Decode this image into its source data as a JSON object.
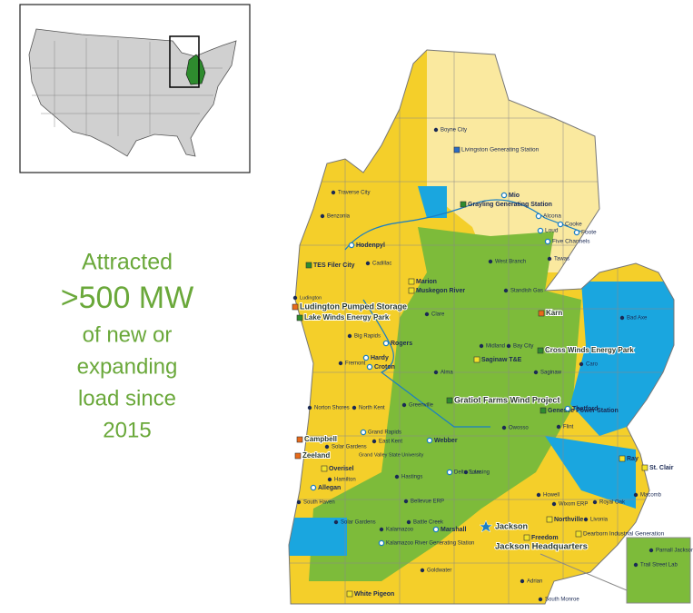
{
  "callout": {
    "lines": [
      "Attracted",
      ">500 MW",
      "of new or",
      "expanding",
      "load since",
      "2015"
    ]
  },
  "map": {
    "labels": [
      "Boyne City",
      "Livingston Generating Station",
      "Traverse City",
      "Benzonia",
      "Grayling Generating Station",
      "Mio",
      "Alcona",
      "Cooke",
      "Loud",
      "Five Channels",
      "Foote",
      "Hodenpyl",
      "TES Filer City",
      "Cadillac",
      "West Branch",
      "Tawas",
      "Ludington",
      "Ludington Pumped Storage",
      "Marion",
      "Muskegon River",
      "Standish Gas",
      "Lake Winds Energy Park",
      "Clare",
      "Big Rapids",
      "Rogers",
      "Karn",
      "Bad Axe",
      "Midland",
      "Bay City",
      "Saginaw T&E",
      "Cross Winds Energy Park",
      "Caro",
      "Hardy",
      "Croton",
      "Fremont",
      "Alma",
      "Saginaw",
      "Norton Shores",
      "North Kent",
      "Greenville",
      "Gratiot Farms Wind Project",
      "Genesee Power Station",
      "Thetford",
      "Owosso",
      "Flint",
      "Campbell",
      "Grand Rapids",
      "Solar Gardens",
      "Grand Valley State University",
      "East Kent",
      "Webber",
      "Zeeland",
      "Lansing",
      "Delta Solar",
      "Ray",
      "St. Clair",
      "Overisel",
      "Hamilton",
      "Hastings",
      "Allegan",
      "Howell",
      "Royal Oak",
      "Macomb",
      "South Haven",
      "Bellevue ERP",
      "Wixom ERP",
      "Northville",
      "Livonia",
      "Battle Creek",
      "Marshall",
      "Jackson",
      "Jackson Headquarters",
      "Freedom",
      "Kalamazoo",
      "Kalamazoo River Generating Station",
      "Solar Gardens",
      "Dearborn Industrial Generation",
      "Trail Street Lab",
      "Parnall Jackson",
      "Goldwater",
      "Adrian",
      "White Pigeon",
      "South Monroe"
    ]
  }
}
